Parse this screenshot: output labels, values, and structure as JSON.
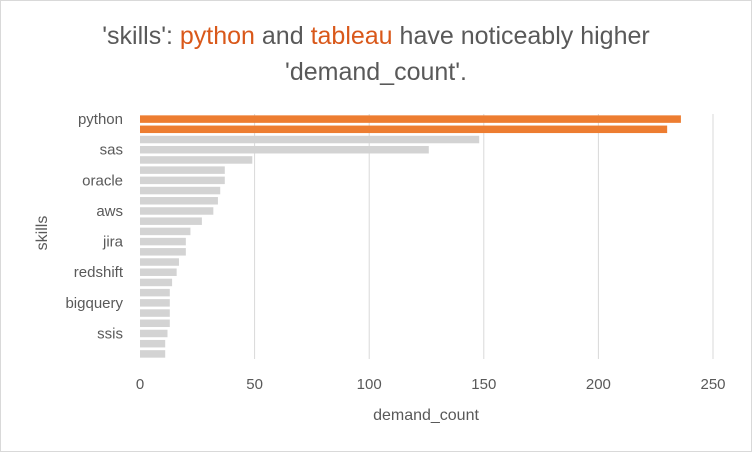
{
  "title": {
    "prefix": "'skills': ",
    "highlight_1": "python",
    "connector": " and ",
    "highlight_2": "tableau",
    "suffix_line1": " have noticeably higher",
    "line2": "'demand_count'."
  },
  "colors": {
    "highlight": "#ed7d31",
    "title_highlight": "#d9581a",
    "muted": "#d3d3d3",
    "text": "#595959",
    "grid": "#d9d9d9"
  },
  "chart_data": {
    "type": "bar",
    "orientation": "horizontal",
    "xlabel": "demand_count",
    "ylabel": "skills",
    "xlim": [
      0,
      250
    ],
    "x_ticks": [
      0,
      50,
      100,
      150,
      200,
      250
    ],
    "grid": "vertical",
    "category_labels_shown": [
      "python",
      "sas",
      "oracle",
      "aws",
      "jira",
      "redshift",
      "bigquery",
      "ssis"
    ],
    "bars": [
      {
        "label": "python",
        "value": 236,
        "highlight": true
      },
      {
        "label": "",
        "value": 230,
        "highlight": true
      },
      {
        "label": "",
        "value": 148,
        "highlight": false
      },
      {
        "label": "sas",
        "value": 126,
        "highlight": false
      },
      {
        "label": "",
        "value": 49,
        "highlight": false
      },
      {
        "label": "",
        "value": 37,
        "highlight": false
      },
      {
        "label": "oracle",
        "value": 37,
        "highlight": false
      },
      {
        "label": "",
        "value": 35,
        "highlight": false
      },
      {
        "label": "",
        "value": 34,
        "highlight": false
      },
      {
        "label": "aws",
        "value": 32,
        "highlight": false
      },
      {
        "label": "",
        "value": 27,
        "highlight": false
      },
      {
        "label": "",
        "value": 22,
        "highlight": false
      },
      {
        "label": "jira",
        "value": 20,
        "highlight": false
      },
      {
        "label": "",
        "value": 20,
        "highlight": false
      },
      {
        "label": "",
        "value": 17,
        "highlight": false
      },
      {
        "label": "redshift",
        "value": 16,
        "highlight": false
      },
      {
        "label": "",
        "value": 14,
        "highlight": false
      },
      {
        "label": "",
        "value": 13,
        "highlight": false
      },
      {
        "label": "bigquery",
        "value": 13,
        "highlight": false
      },
      {
        "label": "",
        "value": 13,
        "highlight": false
      },
      {
        "label": "",
        "value": 13,
        "highlight": false
      },
      {
        "label": "ssis",
        "value": 12,
        "highlight": false
      },
      {
        "label": "",
        "value": 11,
        "highlight": false
      },
      {
        "label": "",
        "value": 11,
        "highlight": false
      }
    ]
  }
}
